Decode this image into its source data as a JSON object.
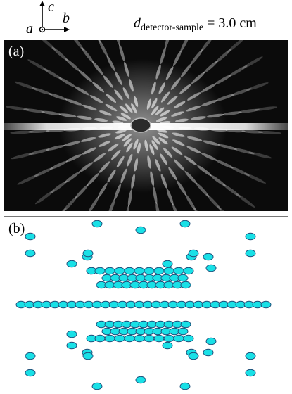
{
  "header": {
    "axes": {
      "c": "c",
      "b": "b",
      "a": "a"
    },
    "distance": {
      "symbol": "d",
      "subscript": "detector-sample",
      "value_text": "= 3.0 cm"
    }
  },
  "panel_a": {
    "tag": "(a)"
  },
  "panel_b": {
    "tag": "(b)"
  },
  "colors": {
    "spot_fill": "#19e0e6",
    "spot_stroke": "#1f4f7a",
    "pattern_bg": "#0b0b0b",
    "streak": "#e8e8e8"
  }
}
